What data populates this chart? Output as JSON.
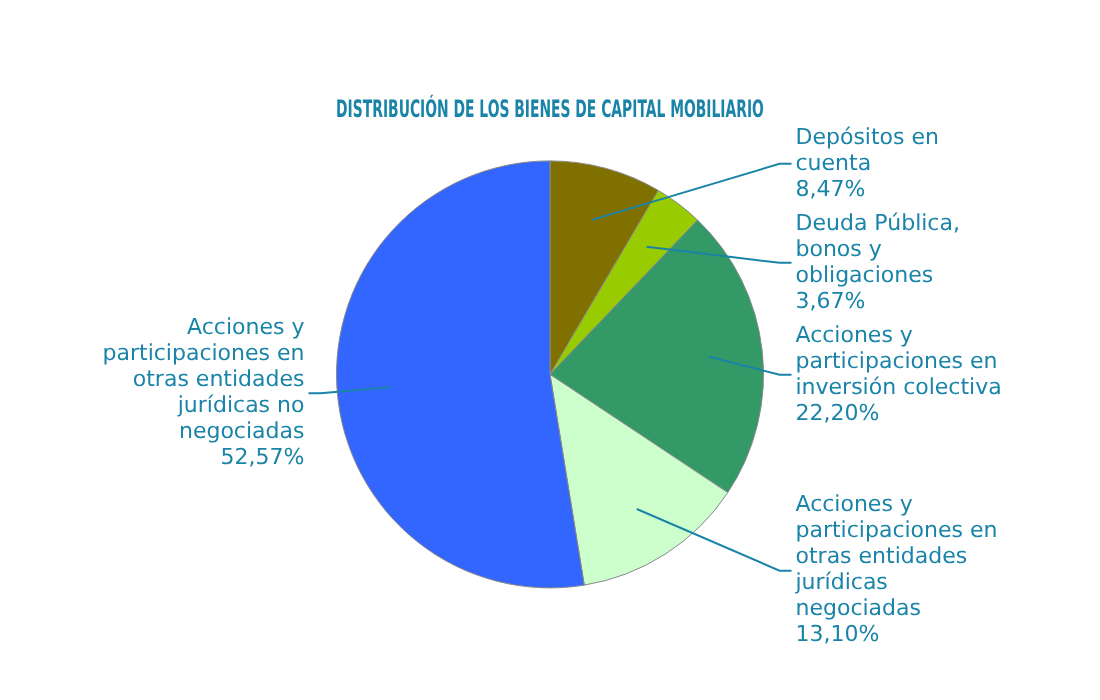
{
  "chart_data": {
    "type": "pie",
    "title": "DISTRIBUCIÓN DE LOS BIENES DE CAPITAL MOBILIARIO",
    "categories": [
      "Depósitos en cuenta",
      "Deuda Pública, bonos y obligaciones",
      "Acciones y participaciones en inversión colectiva",
      "Acciones y participaciones en otras entidades jurídicas negociadas",
      "Acciones y participaciones en otras entidades jurídicas no negociadas"
    ],
    "values": [
      8.47,
      3.67,
      22.2,
      13.1,
      52.57
    ],
    "value_labels": [
      "8,47%",
      "3,67%",
      "22,20%",
      "13,10%",
      "52,57%"
    ],
    "colors": [
      "#7f7000",
      "#99cc00",
      "#339966",
      "#ccffcc",
      "#3366ff"
    ],
    "legend": false
  }
}
